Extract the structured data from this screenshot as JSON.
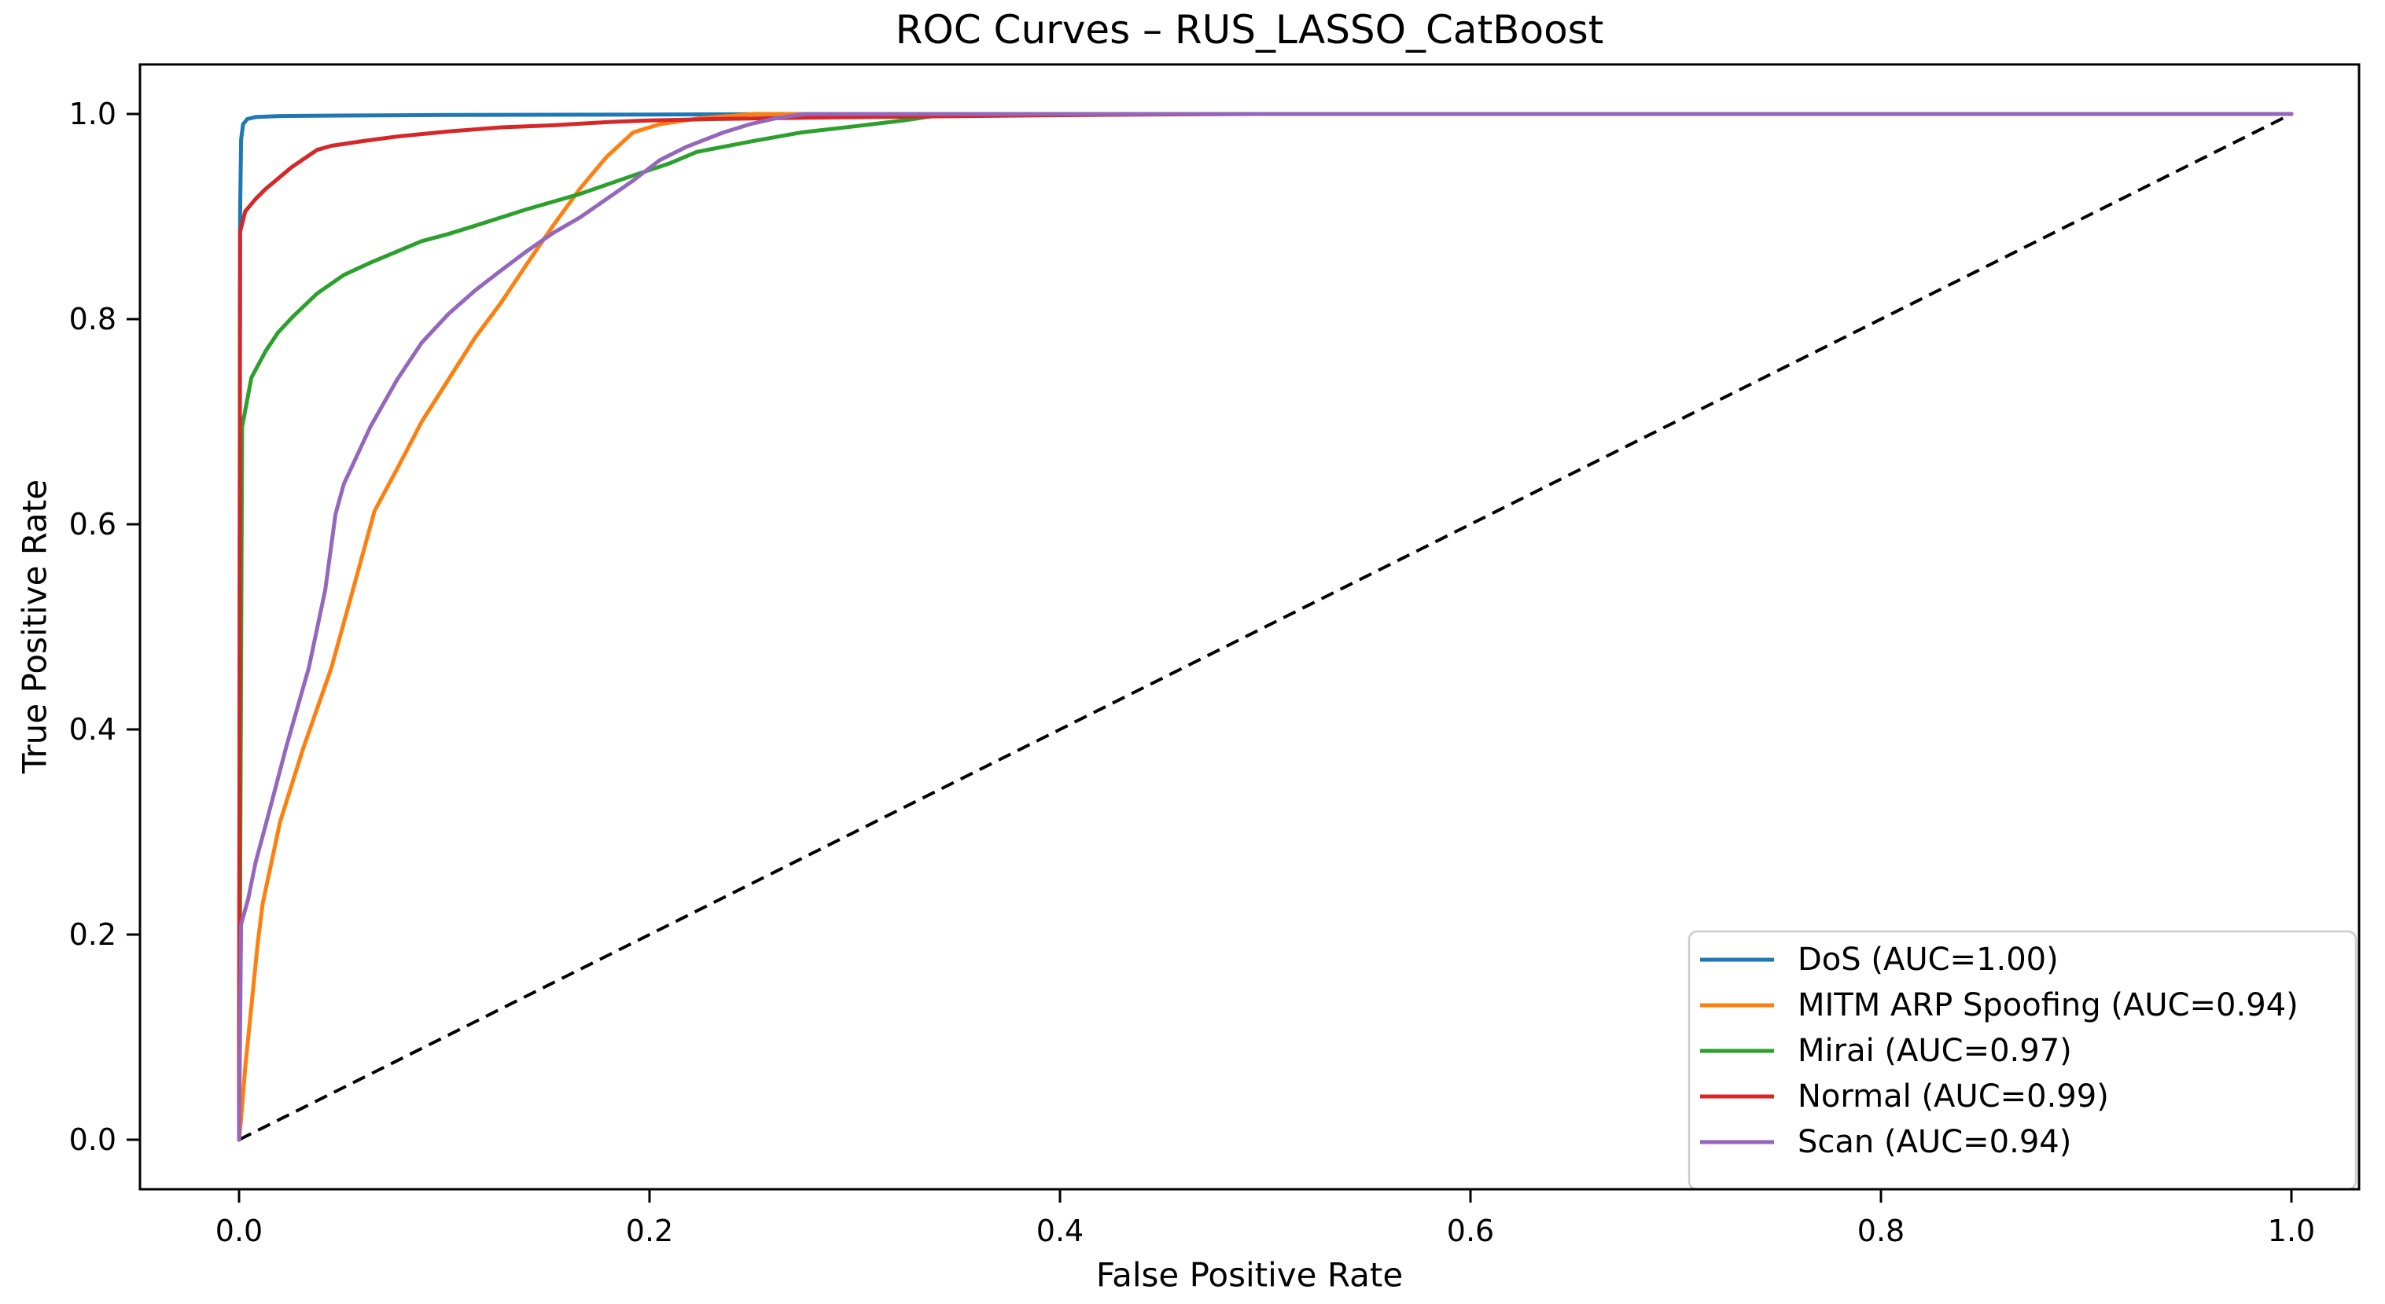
{
  "chart_data": {
    "type": "line",
    "title": "ROC Curves – RUS_LASSO_CatBoost",
    "xlabel": "False Positive Rate",
    "ylabel": "True Positive Rate",
    "x_ticks": [
      0.0,
      0.2,
      0.4,
      0.6,
      0.8,
      1.0
    ],
    "y_ticks": [
      0.0,
      0.2,
      0.4,
      0.6,
      0.8,
      1.0
    ],
    "xlim": [
      -0.05,
      1.04
    ],
    "ylim": [
      -0.05,
      1.05
    ],
    "grid": false,
    "legend_position": "lower right",
    "reference_line": {
      "name": "chance-diagonal",
      "style": "dashed",
      "color": "#000000",
      "from": [
        0,
        0
      ],
      "to": [
        1,
        1
      ]
    },
    "series": [
      {
        "name": "DoS (AUC=1.00)",
        "auc": "1.00",
        "color": "#1f77b4",
        "x": [
          0,
          0.0005,
          0.001,
          0.002,
          0.004,
          0.008,
          0.02,
          0.05,
          0.1,
          0.2,
          0.3,
          1.0
        ],
        "y": [
          0,
          0.9,
          0.975,
          0.99,
          0.995,
          0.997,
          0.998,
          0.9985,
          0.999,
          0.9995,
          1.0,
          1.0
        ]
      },
      {
        "name": "MITM ARP Spoofing (AUC=0.94)",
        "auc": "0.94",
        "color": "#ff7f0e",
        "x": [
          0,
          0.001,
          0.003,
          0.006,
          0.009,
          0.0115,
          0.02,
          0.031,
          0.045,
          0.056,
          0.066,
          0.077,
          0.089,
          0.102,
          0.115,
          0.128,
          0.14,
          0.153,
          0.166,
          0.179,
          0.192,
          0.205,
          0.225,
          0.252,
          1.0
        ],
        "y": [
          0,
          0.02,
          0.07,
          0.13,
          0.19,
          0.23,
          0.31,
          0.38,
          0.46,
          0.54,
          0.613,
          0.654,
          0.7,
          0.741,
          0.782,
          0.817,
          0.853,
          0.891,
          0.927,
          0.958,
          0.982,
          0.99,
          0.996,
          1.0,
          1.0
        ]
      },
      {
        "name": "Mirai (AUC=0.97)",
        "auc": "0.97",
        "color": "#2ca02c",
        "x": [
          0,
          0.0015,
          0.006,
          0.013,
          0.019,
          0.026,
          0.038,
          0.051,
          0.064,
          0.077,
          0.089,
          0.102,
          0.115,
          0.14,
          0.166,
          0.192,
          0.21,
          0.223,
          0.249,
          0.274,
          0.3,
          0.325,
          0.345,
          1.0
        ],
        "y": [
          0,
          0.695,
          0.743,
          0.769,
          0.787,
          0.802,
          0.825,
          0.843,
          0.855,
          0.866,
          0.876,
          0.883,
          0.891,
          0.907,
          0.922,
          0.94,
          0.952,
          0.963,
          0.973,
          0.982,
          0.988,
          0.994,
          1.0,
          1.0
        ]
      },
      {
        "name": "Normal (AUC=0.99)",
        "auc": "0.99",
        "color": "#d62728",
        "x": [
          0,
          0.0005,
          0.003,
          0.008,
          0.013,
          0.0255,
          0.038,
          0.045,
          0.06,
          0.077,
          0.102,
          0.128,
          0.153,
          0.179,
          0.198,
          0.23,
          0.28,
          0.33,
          0.38,
          0.44,
          0.5,
          1.0
        ],
        "y": [
          0,
          0.885,
          0.905,
          0.917,
          0.927,
          0.948,
          0.965,
          0.969,
          0.9735,
          0.978,
          0.983,
          0.987,
          0.989,
          0.992,
          0.9936,
          0.995,
          0.9965,
          0.9975,
          0.9985,
          0.9995,
          1.0,
          1.0
        ]
      },
      {
        "name": "Scan (AUC=0.94)",
        "auc": "0.94",
        "color": "#9467bd",
        "x": [
          0,
          0.001,
          0.0045,
          0.008,
          0.013,
          0.023,
          0.034,
          0.042,
          0.047,
          0.051,
          0.064,
          0.077,
          0.089,
          0.102,
          0.115,
          0.128,
          0.14,
          0.153,
          0.166,
          0.179,
          0.192,
          0.205,
          0.218,
          0.236,
          0.249,
          0.262,
          0.276,
          1.0
        ],
        "y": [
          0,
          0.21,
          0.235,
          0.27,
          0.307,
          0.383,
          0.46,
          0.536,
          0.61,
          0.639,
          0.695,
          0.741,
          0.777,
          0.805,
          0.828,
          0.848,
          0.866,
          0.884,
          0.899,
          0.917,
          0.935,
          0.955,
          0.968,
          0.982,
          0.99,
          0.996,
          1.0,
          1.0
        ]
      }
    ]
  }
}
